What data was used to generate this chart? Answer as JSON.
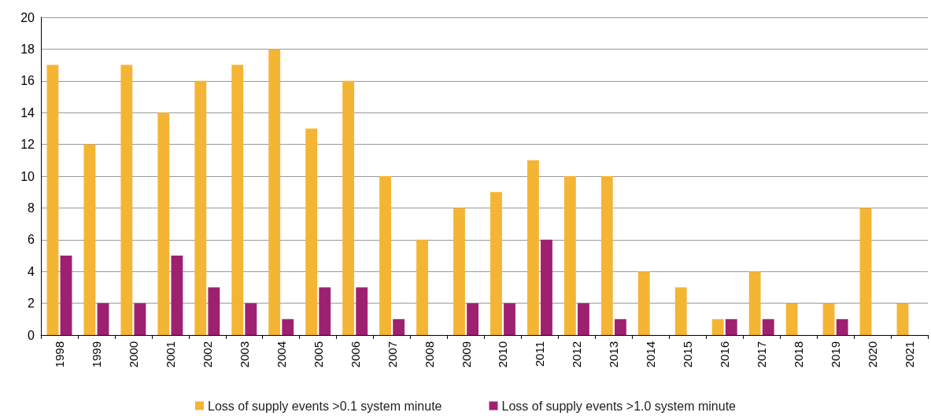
{
  "chart_data": {
    "type": "bar",
    "categories": [
      "1998",
      "1999",
      "2000",
      "2001",
      "2002",
      "2003",
      "2004",
      "2005",
      "2006",
      "2007",
      "2008",
      "2009",
      "2010",
      "2011",
      "2012",
      "2013",
      "2014",
      "2015",
      "2016",
      "2017",
      "2018",
      "2019",
      "2020",
      "2021"
    ],
    "series": [
      {
        "name": "Loss of supply events >0.1 system minute",
        "color": "#f4b534",
        "values": [
          17,
          12,
          17,
          14,
          16,
          17,
          18,
          13,
          16,
          10,
          6,
          8,
          9,
          11,
          10,
          10,
          4,
          3,
          1,
          4,
          2,
          2,
          8,
          2
        ]
      },
      {
        "name": "Loss of supply events >1.0 system minute",
        "color": "#9e2171",
        "values": [
          5,
          2,
          2,
          5,
          3,
          2,
          1,
          3,
          3,
          1,
          0,
          2,
          2,
          6,
          2,
          1,
          0,
          0,
          1,
          1,
          0,
          1,
          0,
          0
        ]
      }
    ],
    "ylim": [
      0,
      20
    ],
    "yticks": [
      0,
      2,
      4,
      6,
      8,
      10,
      12,
      14,
      16,
      18,
      20
    ],
    "grid": "y",
    "legend": "bottom"
  }
}
